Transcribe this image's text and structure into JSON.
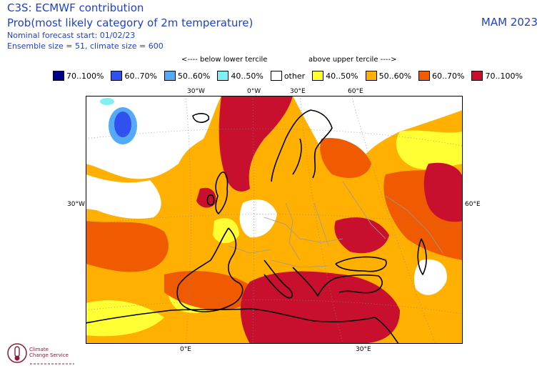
{
  "header": {
    "title": "C3S: ECMWF contribution",
    "subtitle": "Prob(most likely category of 2m temperature)",
    "forecast_start": "Nominal forecast start: 01/02/23",
    "ensemble": "Ensemble size = 51, climate size = 600",
    "season": "MAM 2023"
  },
  "tercile_labels": {
    "below": "<---- below lower tercile",
    "above": "above upper tercile ---->"
  },
  "legend": [
    {
      "label": "70..100%",
      "color": "#00008b"
    },
    {
      "label": "60..70%",
      "color": "#3050f0"
    },
    {
      "label": "50..60%",
      "color": "#55aaf5"
    },
    {
      "label": "40..50%",
      "color": "#80f0f0"
    },
    {
      "label": "other",
      "color": "#ffffff"
    },
    {
      "label": "40..50%",
      "color": "#ffff33"
    },
    {
      "label": "50..60%",
      "color": "#ffb000"
    },
    {
      "label": "60..70%",
      "color": "#f05a00"
    },
    {
      "label": "70..100%",
      "color": "#c8102e"
    }
  ],
  "axes": {
    "top": [
      "30°W",
      "0°W",
      "30°E",
      "60°E"
    ],
    "left": "30°W",
    "right": "60°E",
    "bottom": [
      "0°E",
      "30°E"
    ]
  },
  "logo_text": "Climate Change Service"
}
